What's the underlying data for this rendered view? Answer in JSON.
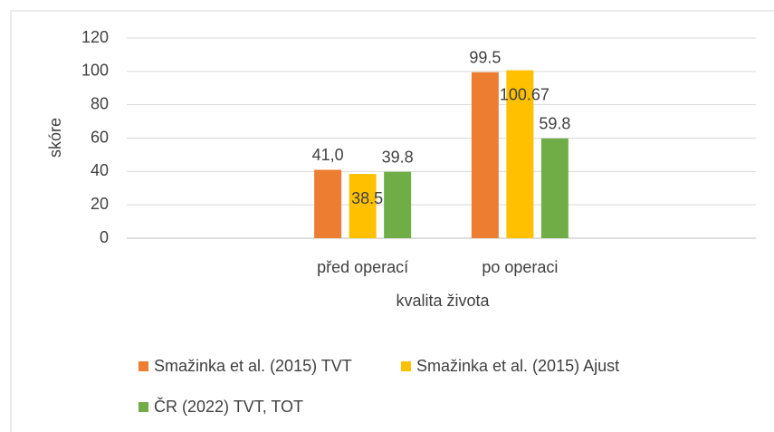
{
  "chart_data": {
    "type": "bar",
    "xlabel": "kvalita života",
    "ylabel": "skóre",
    "categories": [
      null,
      "před operací",
      "po operaci",
      null
    ],
    "series": [
      {
        "name": "Smažinka et al. (2015) TVT",
        "color": "#ED7D31",
        "values": [
          null,
          41.0,
          99.5,
          null
        ],
        "value_labels": [
          null,
          "41,0",
          "99.5",
          null
        ]
      },
      {
        "name": "Smažinka et al. (2015) Ajust",
        "color": "#FFC000",
        "values": [
          null,
          38.5,
          100.67,
          null
        ]
      },
      {
        "name": "ČR (2022) TVT, TOT",
        "color": "#70AD47",
        "values": [
          null,
          39.8,
          59.8,
          null
        ]
      }
    ],
    "ylim": [
      0,
      120
    ],
    "yticks": [
      0,
      20,
      40,
      60,
      80,
      100,
      120
    ],
    "grid": true,
    "legend": "bottom"
  }
}
